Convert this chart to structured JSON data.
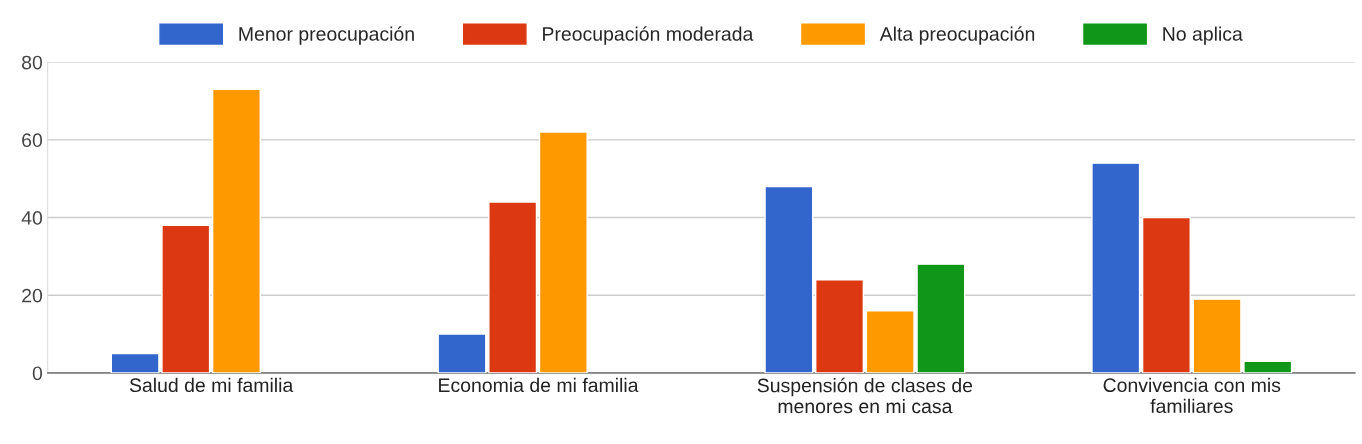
{
  "chart_data": {
    "type": "bar",
    "categories": [
      "Salud de mi familia",
      "Economia de mi familia",
      "Suspensión de clases de menores en mi casa",
      "Convivencia con mis familiares"
    ],
    "series": [
      {
        "name": "Menor preocupación",
        "color": "#3366cc",
        "values": [
          5,
          10,
          48,
          54
        ]
      },
      {
        "name": "Preocupación moderada",
        "color": "#dc3912",
        "values": [
          38,
          44,
          24,
          40
        ]
      },
      {
        "name": "Alta preocupación",
        "color": "#ff9900",
        "values": [
          73,
          62,
          16,
          19
        ]
      },
      {
        "name": "No aplica",
        "color": "#109618",
        "values": [
          null,
          null,
          28,
          3
        ]
      }
    ],
    "ylim": [
      0,
      80
    ],
    "yticks": [
      0,
      20,
      40,
      60,
      80
    ],
    "grid": "y",
    "legend": "top"
  }
}
